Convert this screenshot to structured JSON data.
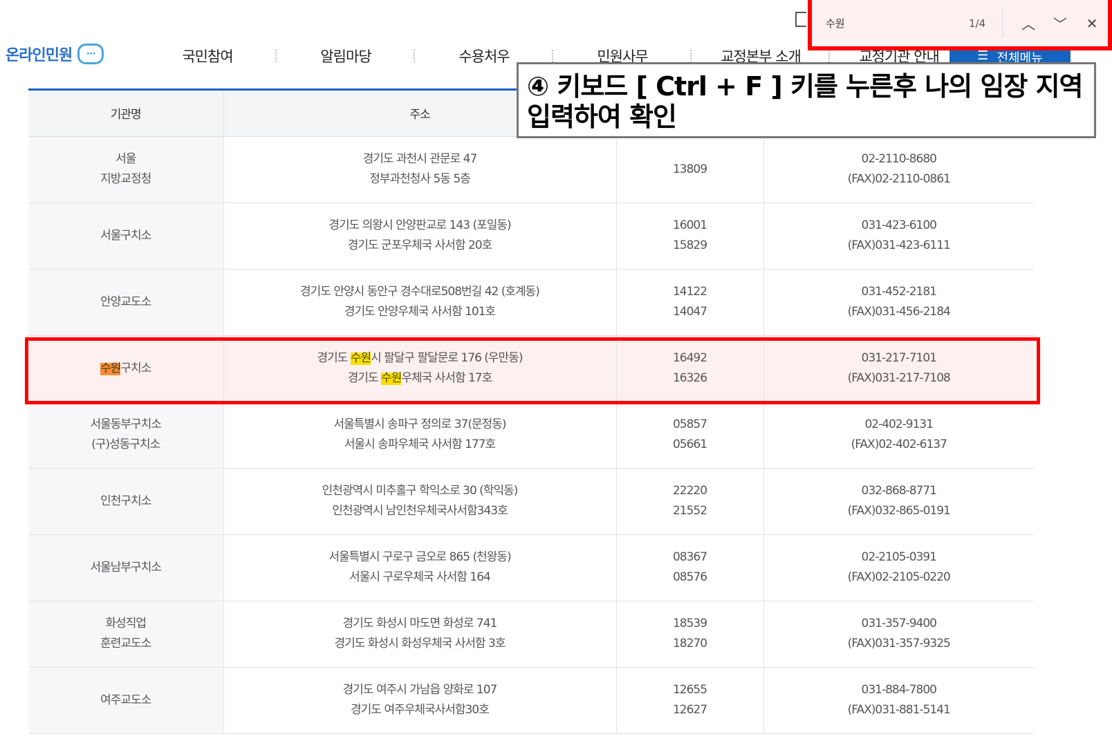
{
  "header": {
    "logo": "온라인민원",
    "nav": [
      "국민참여",
      "알림마당",
      "수용처우",
      "민원사무",
      "교정본부 소개",
      "교정기관 안내"
    ],
    "all_menu": "전체메뉴"
  },
  "find_bar": {
    "query": "수원",
    "count": "1/4",
    "icons": [
      "chevron-up-icon",
      "chevron-down-icon",
      "close-icon"
    ]
  },
  "callout": {
    "text": "④ 키보드 [ Ctrl + F ] 키를 누른후 나의 임장 지역 입력하여 확인"
  },
  "table": {
    "headers": [
      "기관명",
      "주소",
      "",
      ""
    ],
    "rows": [
      {
        "name": [
          "서울",
          "지방교정청"
        ],
        "addr": [
          "경기도 과천시 관문로 47",
          "정부과천청사 5동 5층"
        ],
        "zip": [
          "13809"
        ],
        "tel": [
          "02-2110-8680",
          "(FAX)02-2110-0861"
        ]
      },
      {
        "name": [
          "서울구치소"
        ],
        "addr": [
          "경기도 의왕시 안양판교로 143 (포일동)",
          "경기도 군포우체국 사서함 20호"
        ],
        "zip": [
          "16001",
          "15829"
        ],
        "tel": [
          "031-423-6100",
          "(FAX)031-423-6111"
        ]
      },
      {
        "name": [
          "안양교도소"
        ],
        "addr": [
          "경기도 안양시 동안구 경수대로508번길 42 (호계동)",
          "경기도 안양우체국 사서함 101호"
        ],
        "zip": [
          "14122",
          "14047"
        ],
        "tel": [
          "031-452-2181",
          "(FAX)031-456-2184"
        ]
      },
      {
        "name": [
          "수원구치소"
        ],
        "addr": [
          "경기도 수원시 팔달구 팔달문로 176 (우만동)",
          "경기도 수원우체국 사서함 17호"
        ],
        "zip": [
          "16492",
          "16326"
        ],
        "tel": [
          "031-217-7101",
          "(FAX)031-217-7108"
        ],
        "active": true
      },
      {
        "name": [
          "서울동부구치소",
          "(구)성동구치소"
        ],
        "addr": [
          "서울특별시 송파구 정의로 37(문정동)",
          "서울시 송파우체국 사서함 177호"
        ],
        "zip": [
          "05857",
          "05661"
        ],
        "tel": [
          "02-402-9131",
          "(FAX)02-402-6137"
        ]
      },
      {
        "name": [
          "인천구치소"
        ],
        "addr": [
          "인천광역시 미추홀구 학익소로 30 (학익동)",
          "인천광역시 남인천우체국사서함343호"
        ],
        "zip": [
          "22220",
          "21552"
        ],
        "tel": [
          "032-868-8771",
          "(FAX)032-865-0191"
        ]
      },
      {
        "name": [
          "서울남부구치소"
        ],
        "addr": [
          "서울특별시 구로구 금오로 865 (천왕동)",
          "서울시 구로우체국 사서함 164"
        ],
        "zip": [
          "08367",
          "08576"
        ],
        "tel": [
          "02-2105-0391",
          "(FAX)02-2105-0220"
        ]
      },
      {
        "name": [
          "화성직업",
          "훈련교도소"
        ],
        "addr": [
          "경기도 화성시 마도면 화성로 741",
          "경기도 화성시 화성우체국 사서함 3호"
        ],
        "zip": [
          "18539",
          "18270"
        ],
        "tel": [
          "031-357-9400",
          "(FAX)031-357-9325"
        ]
      },
      {
        "name": [
          "여주교도소"
        ],
        "addr": [
          "경기도 여주시 가남읍 양화로 107",
          "경기도 여주우체국사서함30호"
        ],
        "zip": [
          "12655",
          "12627"
        ],
        "tel": [
          "031-884-7800",
          "(FAX)031-881-5141"
        ]
      }
    ]
  },
  "colors": {
    "highlight_box": "#ff0000",
    "match": "#ffee00",
    "current_match": "#f59a3a",
    "accent": "#1a5fc8"
  }
}
